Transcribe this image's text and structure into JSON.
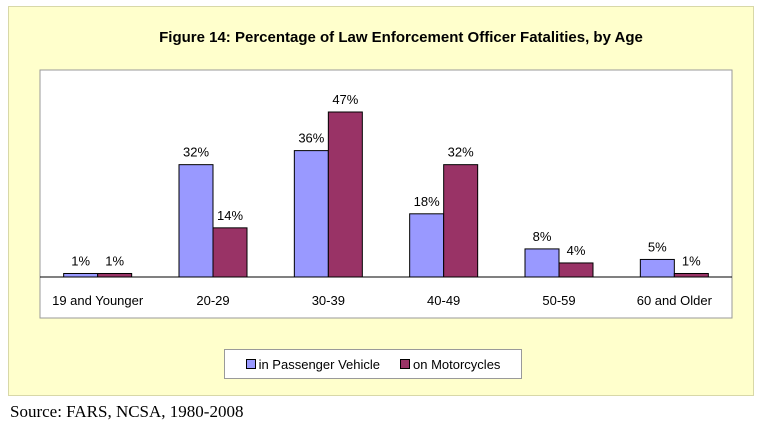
{
  "title": "Figure 14: Percentage of Law Enforcement Officer Fatalities, by Age",
  "source": "Source: FARS, NCSA, 1980-2008",
  "colors": {
    "panel_background": "#ffffcc",
    "passenger_vehicle": "#9999ff",
    "motorcycles": "#993366"
  },
  "chart_data": {
    "type": "bar",
    "title": "Figure 14: Percentage of Law Enforcement Officer Fatalities, by Age",
    "categories": [
      "19 and Younger",
      "20-29",
      "30-39",
      "40-49",
      "50-59",
      "60 and Older"
    ],
    "series": [
      {
        "name": "in Passenger Vehicle",
        "values": [
          1,
          32,
          36,
          18,
          8,
          5
        ],
        "color": "#9999ff"
      },
      {
        "name": "on Motorcycles",
        "values": [
          1,
          14,
          47,
          32,
          4,
          1
        ],
        "color": "#993366"
      }
    ],
    "value_suffix": "%",
    "ylim": [
      0,
      50
    ],
    "xlabel": "",
    "ylabel": "",
    "legend": "bottom",
    "grid": false
  }
}
